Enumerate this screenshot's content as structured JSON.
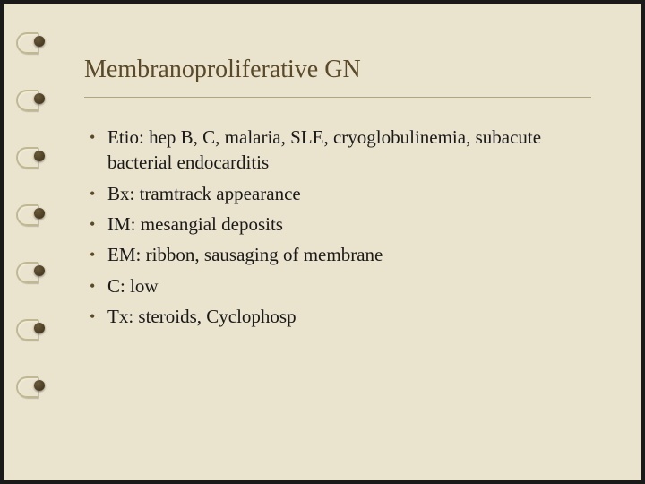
{
  "slide": {
    "title": "Membranoproliferative GN",
    "bullets": [
      "Etio: hep B, C, malaria, SLE, cryoglobulinemia, subacute bacterial endocarditis",
      "Bx: tramtrack appearance",
      "IM: mesangial deposits",
      "EM: ribbon, sausaging of membrane",
      "C: low",
      "Tx: steroids, Cyclophosp"
    ]
  },
  "style": {
    "background_color": "#eae3cd",
    "title_color": "#5a4a28",
    "text_color": "#1a1a1a",
    "divider_color": "#b0a684",
    "title_fontsize": 28,
    "body_fontsize": 21,
    "ring_count": 7
  }
}
